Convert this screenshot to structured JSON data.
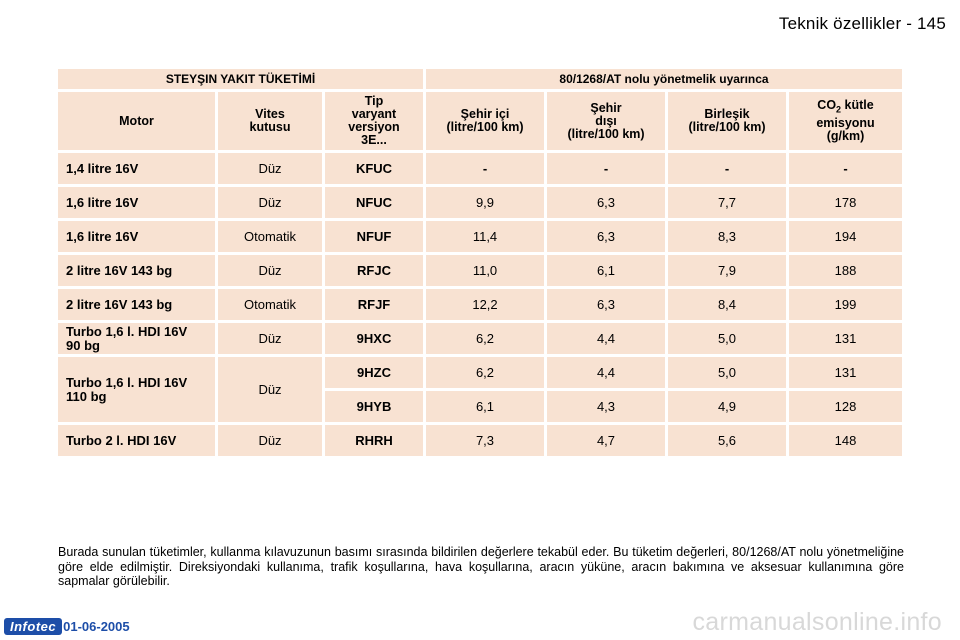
{
  "header": {
    "title": "Teknik özellikler - 145"
  },
  "table": {
    "group_left": "STEYŞIN YAKIT TÜKETİMİ",
    "group_right": "80/1268/AT nolu yönetmelik uyarınca",
    "columns": {
      "motor": "Motor",
      "gear_1": "Vites",
      "gear_2": "kutusu",
      "variant_1": "Tip",
      "variant_2": "varyant",
      "variant_3": "versiyon",
      "variant_4": "3E...",
      "urban_1": "Şehir içi",
      "urban_2": "(litre/100 km)",
      "extra_1": "Şehir",
      "extra_2": "dışı",
      "extra_3": "(litre/100 km)",
      "combined_1": "Birleşik",
      "combined_2": "(litre/100 km)",
      "co2_prefix": "CO",
      "co2_sub": "2",
      "co2_suffix": " kütle",
      "co2_2": "emisyonu",
      "co2_3": "(g/km)"
    },
    "rows": [
      {
        "engine": "1,4 litre 16V",
        "gearbox": "Düz",
        "variant": "KFUC",
        "urban": "-",
        "extra_urban": "-",
        "combined": "-",
        "co2": "-"
      },
      {
        "engine": "1,6 litre 16V",
        "gearbox": "Düz",
        "variant": "NFUC",
        "urban": "9,9",
        "extra_urban": "6,3",
        "combined": "7,7",
        "co2": "178"
      },
      {
        "engine": "1,6 litre 16V",
        "gearbox": "Otomatik",
        "variant": "NFUF",
        "urban": "11,4",
        "extra_urban": "6,3",
        "combined": "8,3",
        "co2": "194"
      },
      {
        "engine": "2 litre 16V 143 bg",
        "gearbox": "Düz",
        "variant": "RFJC",
        "urban": "11,0",
        "extra_urban": "6,1",
        "combined": "7,9",
        "co2": "188"
      },
      {
        "engine": "2 litre 16V 143 bg",
        "gearbox": "Otomatik",
        "variant": "RFJF",
        "urban": "12,2",
        "extra_urban": "6,3",
        "combined": "8,4",
        "co2": "199"
      },
      {
        "engine_1": "Turbo 1,6 l. HDI 16V",
        "engine_2": "90 bg",
        "gearbox": "Düz",
        "variant": "9HXC",
        "urban": "6,2",
        "extra_urban": "4,4",
        "combined": "5,0",
        "co2": "131"
      },
      {
        "engine_1": "Turbo 1,6 l. HDI 16V",
        "engine_2": "110 bg",
        "gearbox": "Düz",
        "variant": "9HZC",
        "urban": "6,2",
        "extra_urban": "4,4",
        "combined": "5,0",
        "co2": "131"
      },
      {
        "variant": "9HYB",
        "urban": "6,1",
        "extra_urban": "4,3",
        "combined": "4,9",
        "co2": "128"
      },
      {
        "engine": "Turbo 2 l. HDI 16V",
        "gearbox": "Düz",
        "variant": "RHRH",
        "urban": "7,3",
        "extra_urban": "4,7",
        "combined": "5,6",
        "co2": "148"
      }
    ]
  },
  "note": "Burada sunulan tüketimler, kullanma kılavuzunun basımı sırasında bildirilen değerlere tekabül eder. Bu tüketim değerleri, 80/1268/AT nolu yönetmeliğine göre elde edilmiştir. Direksiyondaki kullanıma, trafik koşullarına, hava koşullarına, aracın yüküne, aracın bakımına ve aksesuar kullanımına göre sapmalar görülebilir.",
  "footer": {
    "badge": "Infotec",
    "date": "01-06-2005"
  },
  "watermark": "carmanualsonline.info",
  "colors": {
    "cell_bg": "#f8e2d2",
    "badge_blue": "#1d4ea8"
  }
}
